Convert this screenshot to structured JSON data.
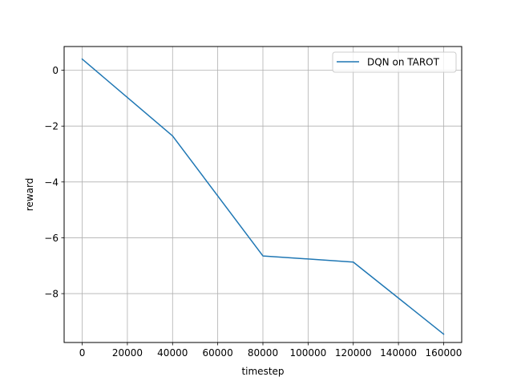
{
  "chart_data": {
    "type": "line",
    "title": "",
    "xlabel": "timestep",
    "ylabel": "reward",
    "xlim": [
      -8000,
      168000
    ],
    "ylim": [
      -9.75,
      0.85
    ],
    "xticks": [
      0,
      20000,
      40000,
      60000,
      80000,
      100000,
      120000,
      140000,
      160000
    ],
    "xtick_labels": [
      "0",
      "20000",
      "40000",
      "60000",
      "80000",
      "100000",
      "120000",
      "140000",
      "160000"
    ],
    "yticks": [
      0,
      -2,
      -4,
      -6,
      -8
    ],
    "ytick_labels": [
      "0",
      "−2",
      "−4",
      "−6",
      "−8"
    ],
    "grid": true,
    "legend_position": "top-right",
    "series": [
      {
        "name": "DQN on TAROT",
        "color": "#1f77b4",
        "x": [
          0,
          40000,
          80000,
          120000,
          160000
        ],
        "y": [
          0.4,
          -2.35,
          -6.65,
          -6.87,
          -9.45
        ]
      }
    ]
  }
}
